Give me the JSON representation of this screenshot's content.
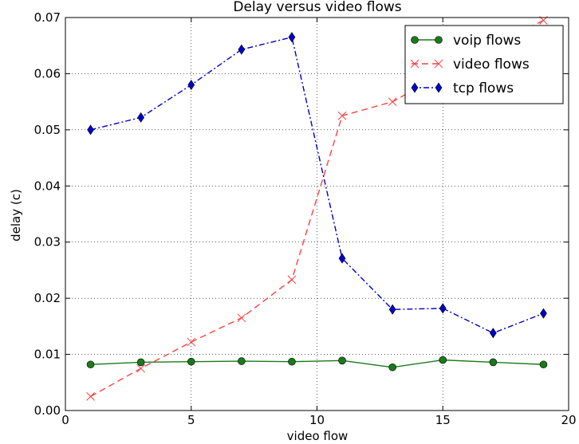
{
  "chart_data": {
    "type": "line",
    "title": "Delay versus video flows",
    "xlabel": "video flow",
    "ylabel": "delay (c)",
    "xlim": [
      0,
      20
    ],
    "ylim": [
      0,
      0.07
    ],
    "xticks": [
      0,
      5,
      10,
      15,
      20
    ],
    "xtick_labels": [
      "0",
      "5",
      "10",
      "15",
      "20"
    ],
    "yticks": [
      0,
      0.01,
      0.02,
      0.03,
      0.04,
      0.05,
      0.06,
      0.07
    ],
    "ytick_labels": [
      "0.00",
      "0.01",
      "0.02",
      "0.03",
      "0.04",
      "0.05",
      "0.06",
      "0.07"
    ],
    "grid": true,
    "legend_position": "top-right",
    "series": [
      {
        "name": "voip flows",
        "color": "#1a7a1a",
        "line_style": "solid",
        "marker": "circle",
        "x": [
          1,
          3,
          5,
          7,
          9,
          11,
          13,
          15,
          17,
          19
        ],
        "y": [
          0.0082,
          0.0086,
          0.0087,
          0.0088,
          0.0087,
          0.0089,
          0.0077,
          0.009,
          0.0086,
          0.0082
        ]
      },
      {
        "name": "video flows",
        "color": "#ff4040",
        "line_style": "dashed",
        "marker": "x",
        "x": [
          1,
          3,
          5,
          7,
          9,
          11,
          13,
          15,
          17,
          19
        ],
        "y": [
          0.0025,
          0.0075,
          0.0122,
          0.0165,
          0.0233,
          0.0525,
          0.055,
          0.06,
          0.065,
          0.0695
        ]
      },
      {
        "name": "tcp flows",
        "color": "#0000cc",
        "line_style": "dashdot",
        "marker": "diamond",
        "x": [
          1,
          3,
          5,
          7,
          9,
          11,
          13,
          15,
          17,
          19
        ],
        "y": [
          0.05,
          0.0522,
          0.058,
          0.0643,
          0.0665,
          0.0271,
          0.018,
          0.0182,
          0.0138,
          0.0173
        ]
      }
    ]
  }
}
